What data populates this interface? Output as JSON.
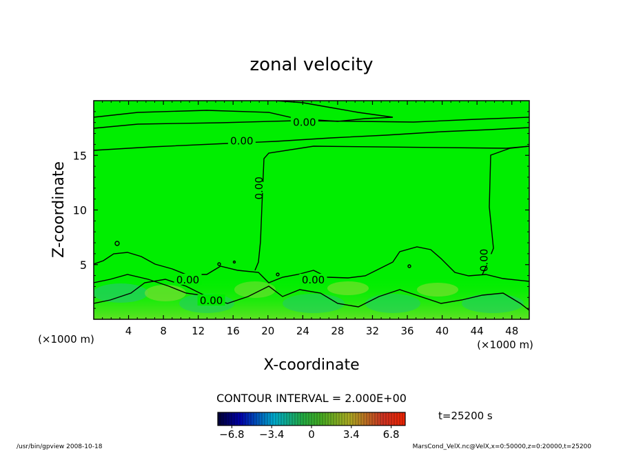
{
  "chart_data": {
    "type": "heatmap",
    "title": "zonal velocity",
    "xlabel": "X-coordinate",
    "ylabel": "Z-coordinate",
    "x_unit_left": "(×1000 m)",
    "x_unit_right": "(×1000 m)",
    "xlim": [
      0,
      50
    ],
    "ylim": [
      0,
      20
    ],
    "x_ticks": [
      4,
      8,
      12,
      16,
      20,
      24,
      28,
      32,
      36,
      40,
      44,
      48
    ],
    "y_ticks": [
      5,
      10,
      15
    ],
    "contour_labels": [
      {
        "text": "0.00",
        "x": 24.2,
        "z": 18.0
      },
      {
        "text": "0.00",
        "x": 17.0,
        "z": 16.3
      },
      {
        "text": "0.00",
        "x": 19.0,
        "z": 12.0
      },
      {
        "text": "0.00",
        "x": 44.8,
        "z": 5.4
      },
      {
        "text": "0.00",
        "x": 10.8,
        "z": 3.6
      },
      {
        "text": "0.00",
        "x": 25.2,
        "z": 3.6
      },
      {
        "text": "0.00",
        "x": 13.5,
        "z": 1.7
      }
    ],
    "contour_interval": "CONTOUR INTERVAL = 2.000E+00",
    "time_label": "t=25200 s",
    "colorbar": {
      "ticks": [
        "−6.8",
        "−3.4",
        "0",
        "3.4",
        "6.8"
      ],
      "tick_values": [
        -6.8,
        -3.4,
        0,
        3.4,
        6.8
      ],
      "range": [
        -8,
        8
      ]
    },
    "grid": false
  },
  "footer": {
    "left": "/usr/bin/gpview  2008-10-18",
    "right": "MarsCond_VelX.nc@VelX,x=0:50000,z=0:20000,t=25200"
  },
  "colors": {
    "field": "#00ee00",
    "line": "#000000"
  }
}
